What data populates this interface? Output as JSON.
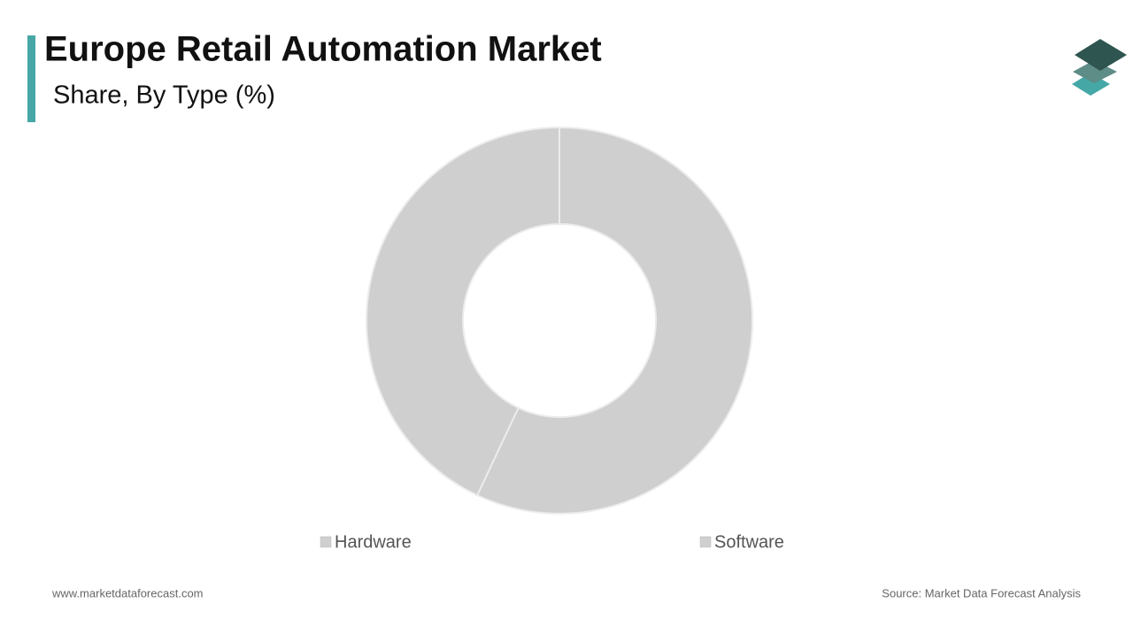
{
  "chart_data": {
    "type": "pie",
    "title": "Europe Retail Automation Market",
    "subtitle": "Share, By Type (%)",
    "categories": [
      "Hardware",
      "Software"
    ],
    "values": [
      57,
      43
    ],
    "colors": [
      "#d0cfd0",
      "#d0cfd0"
    ],
    "donut": true
  },
  "footer": {
    "website": "www.marketdataforecast.com",
    "source": "Source: Market Data Forecast Analysis"
  }
}
